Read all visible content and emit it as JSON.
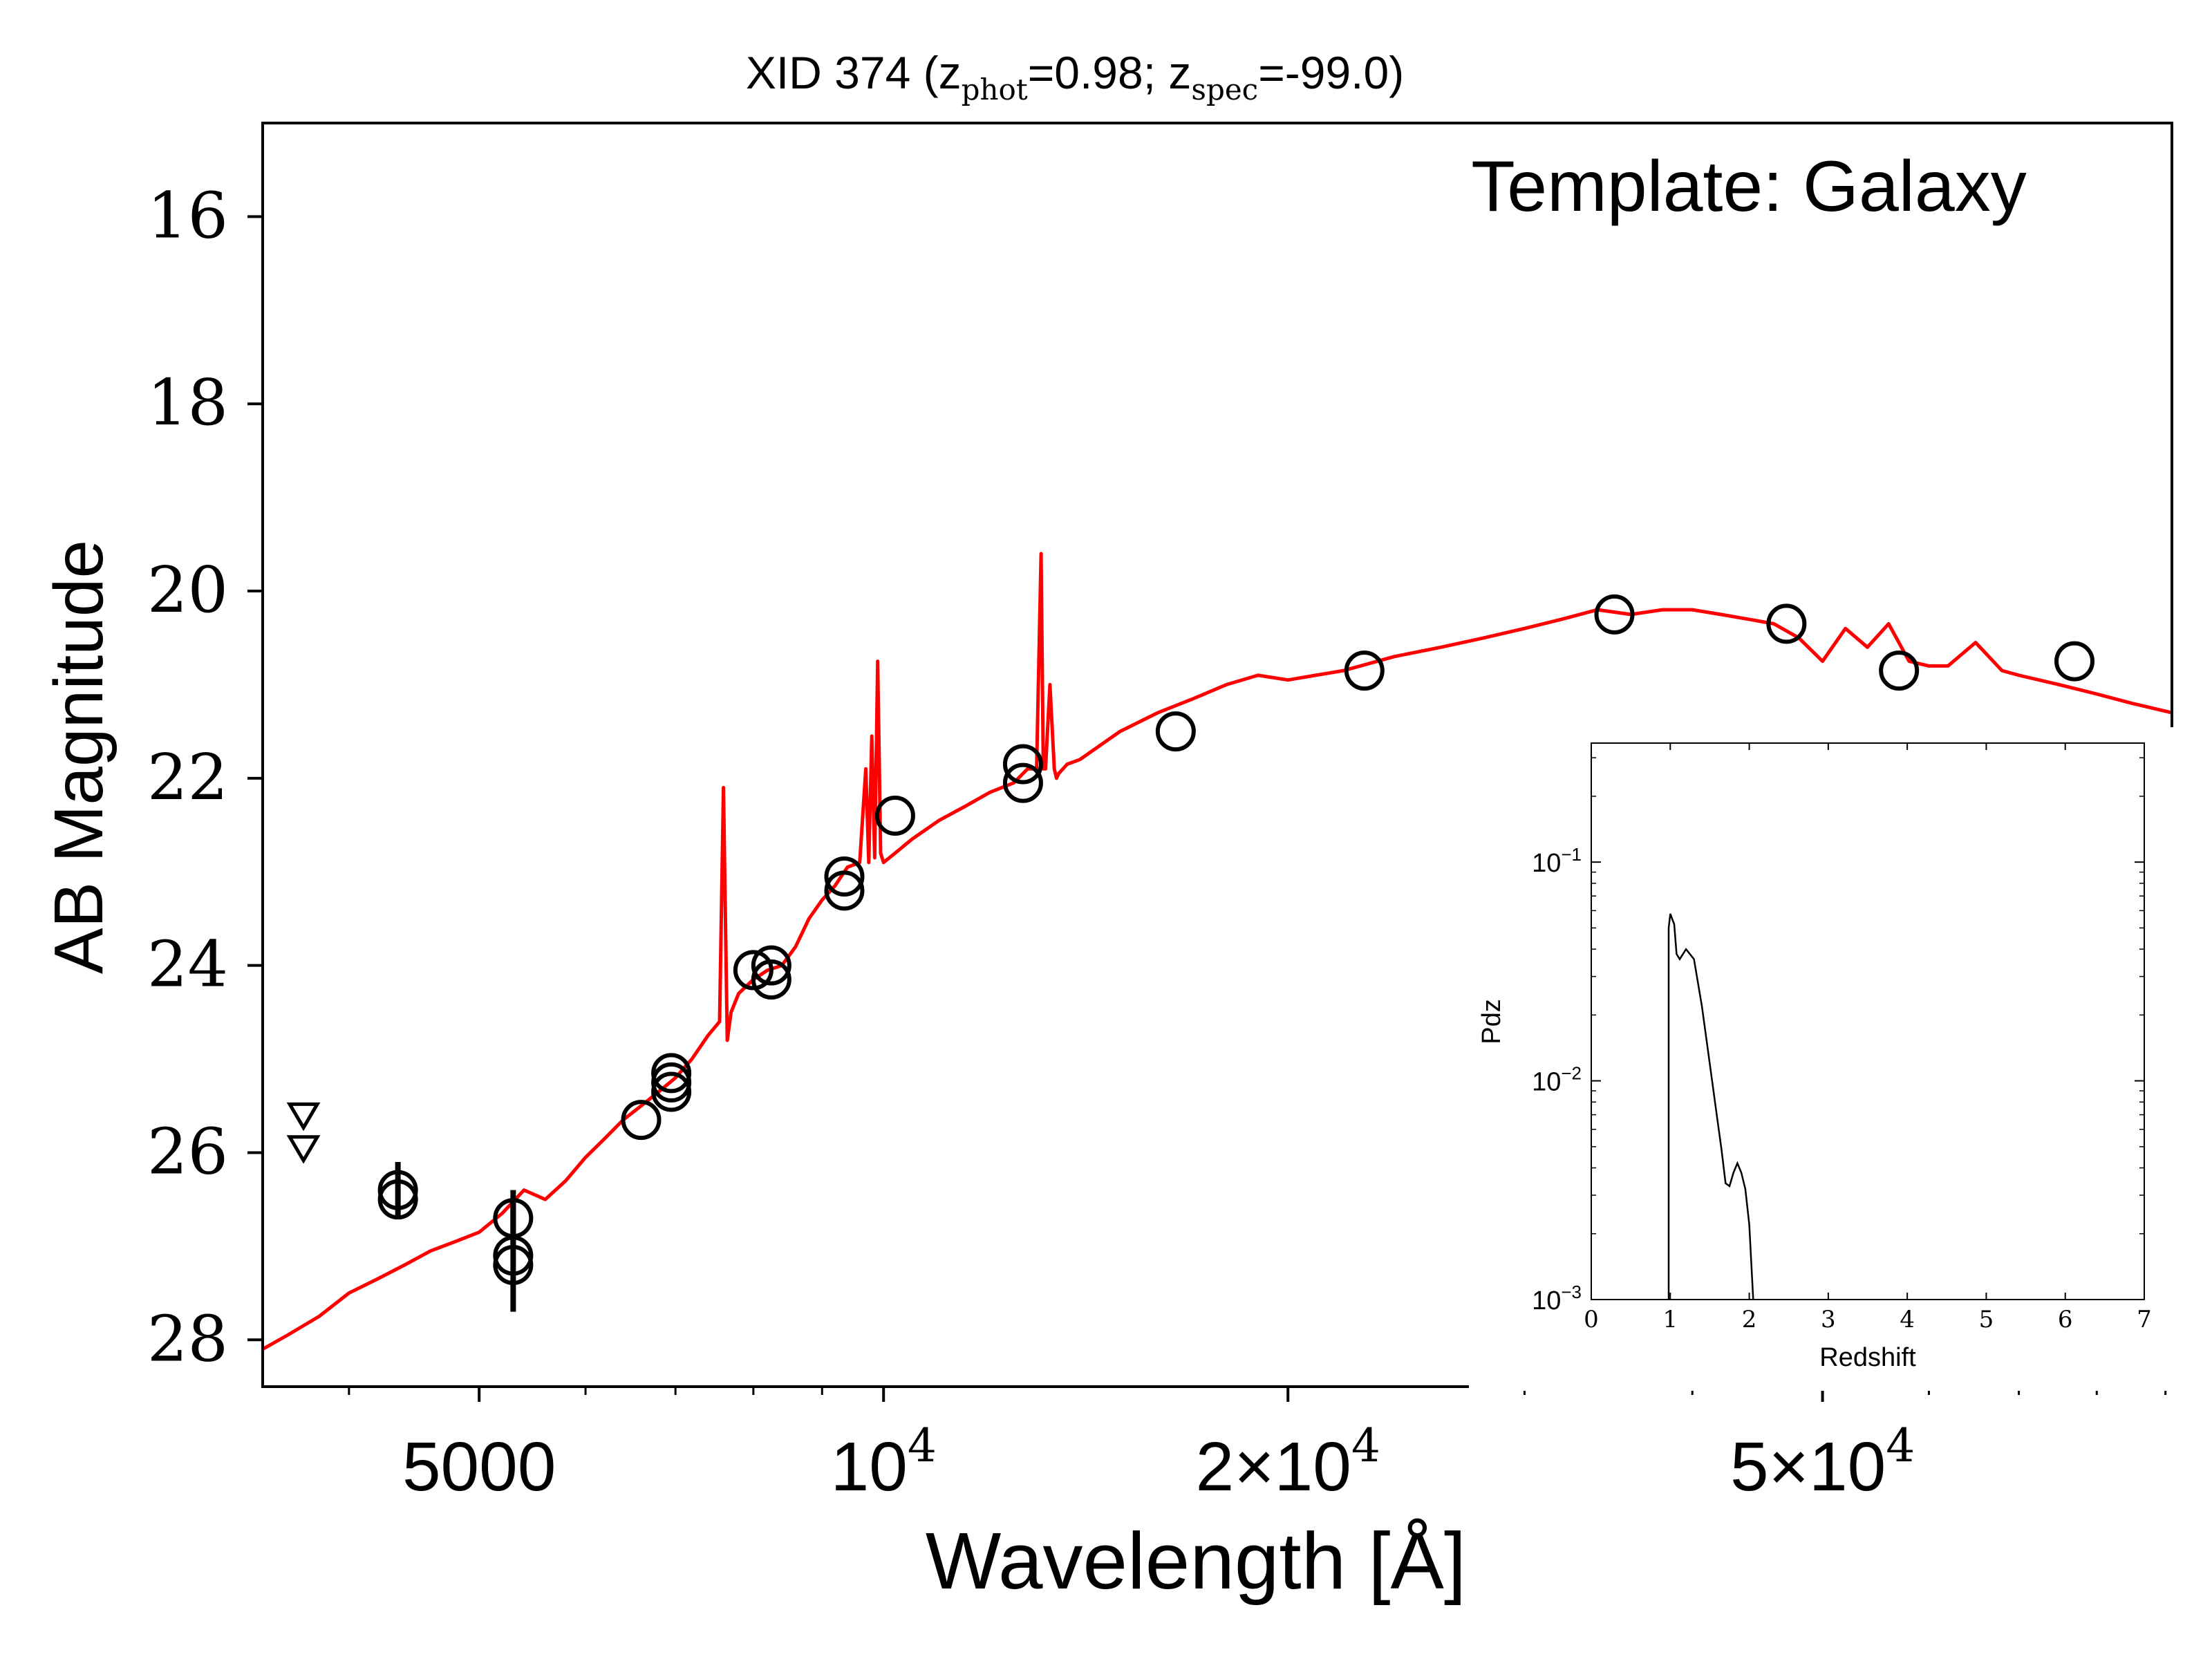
{
  "chart_data": [
    {
      "type": "scatter",
      "title": {
        "prefix": "XID 374 (z",
        "sub1": "phot",
        "mid": "=0.98; z",
        "sub2": "spec",
        "suffix": "=-99.0)"
      },
      "annotation": "Template: Galaxy",
      "xlabel": "Wavelength [Å]",
      "ylabel": "AB Magnitude",
      "x_scale": "log",
      "xlim": [
        3450,
        91000
      ],
      "ylim": [
        28.5,
        15.0
      ],
      "y_inverted": true,
      "x_ticks": [
        {
          "value": 5000,
          "label": "5000"
        },
        {
          "value": 10000,
          "label": "10",
          "sup": "4"
        },
        {
          "value": 20000,
          "label": "2×10",
          "sup": "4"
        },
        {
          "value": 50000,
          "label": "5×10",
          "sup": "4"
        }
      ],
      "y_ticks": [
        16,
        18,
        20,
        22,
        24,
        26,
        28
      ],
      "grid": false,
      "colors": {
        "model": "#ff0000",
        "points": "#000000"
      },
      "series": [
        {
          "kind": "line",
          "color": "#ff0000",
          "x": [
            3450,
            3600,
            3800,
            4000,
            4200,
            4400,
            4600,
            4800,
            5000,
            5200,
            5400,
            5600,
            5800,
            6000,
            6200,
            6400,
            6600,
            6800,
            7000,
            7200,
            7400,
            7550,
            7600,
            7650,
            7700,
            7800,
            8000,
            8200,
            8400,
            8600,
            8800,
            9000,
            9200,
            9400,
            9600,
            9700,
            9750,
            9800,
            9850,
            9900,
            9950,
            10000,
            10100,
            10200,
            10500,
            11000,
            11500,
            12000,
            12500,
            12800,
            13000,
            13100,
            13150,
            13200,
            13300,
            13400,
            13450,
            13500,
            13700,
            14000,
            15000,
            16000,
            17000,
            18000,
            19000,
            20000,
            22000,
            24000,
            26000,
            28000,
            30000,
            32000,
            34000,
            36000,
            38000,
            40000,
            42000,
            44000,
            46000,
            48000,
            50000,
            52000,
            54000,
            56000,
            58000,
            60000,
            62000,
            65000,
            68000,
            70000,
            75000,
            80000,
            85000,
            91000
          ],
          "y": [
            28.1,
            27.95,
            27.75,
            27.5,
            27.35,
            27.2,
            27.05,
            26.95,
            26.85,
            26.65,
            26.4,
            26.5,
            26.3,
            26.05,
            25.85,
            25.65,
            25.5,
            25.35,
            25.2,
            25.0,
            24.75,
            24.6,
            22.1,
            24.8,
            24.5,
            24.3,
            24.15,
            24.05,
            24.0,
            23.8,
            23.5,
            23.3,
            23.15,
            22.95,
            22.9,
            21.9,
            22.9,
            21.55,
            22.85,
            20.75,
            22.8,
            22.9,
            22.85,
            22.8,
            22.65,
            22.45,
            22.3,
            22.15,
            22.05,
            21.9,
            21.9,
            19.6,
            21.9,
            21.9,
            21.0,
            21.9,
            22.0,
            21.95,
            21.85,
            21.8,
            21.5,
            21.3,
            21.15,
            21.0,
            20.9,
            20.95,
            20.85,
            20.7,
            20.6,
            20.5,
            20.4,
            20.3,
            20.2,
            20.25,
            20.2,
            20.2,
            20.25,
            20.3,
            20.35,
            20.5,
            20.75,
            20.4,
            20.6,
            20.35,
            20.75,
            20.8,
            20.8,
            20.55,
            20.85,
            20.9,
            21.0,
            21.1,
            21.2,
            21.3
          ]
        },
        {
          "kind": "points",
          "x": [
            4350,
            4350,
            5300,
            5300,
            5300,
            6600,
            6950,
            6950,
            6950,
            8000,
            8250,
            8250,
            9350,
            9350,
            10200,
            12700,
            12700,
            16500,
            22800,
            35000,
            47000,
            57000,
            77000
          ],
          "y": [
            26.4,
            26.5,
            26.7,
            27.1,
            27.2,
            25.65,
            25.15,
            25.25,
            25.35,
            24.05,
            24.0,
            24.15,
            23.05,
            23.2,
            22.4,
            21.85,
            22.05,
            21.5,
            20.85,
            20.25,
            20.35,
            20.85,
            20.75
          ],
          "yerr": [
            0.3,
            0,
            0.3,
            0.6,
            0,
            0,
            0,
            0,
            0,
            0,
            0,
            0,
            0,
            0,
            0,
            0,
            0,
            0,
            0,
            0,
            0,
            0,
            0
          ]
        },
        {
          "kind": "upper_limits",
          "x": [
            3700,
            3700
          ],
          "y": [
            25.6,
            25.95
          ]
        }
      ]
    },
    {
      "type": "line",
      "xlabel": "Redshift",
      "ylabel": "Pdz",
      "y_scale": "log",
      "xlim": [
        0,
        7
      ],
      "ylim": [
        0.001,
        0.35
      ],
      "x_ticks": [
        "0",
        "1",
        "2",
        "3",
        "4",
        "5",
        "6",
        "7"
      ],
      "y_ticks": [
        {
          "value": 0.1,
          "base": "10",
          "sup": "−1"
        },
        {
          "value": 0.01,
          "base": "10",
          "sup": "−2"
        },
        {
          "value": 0.001,
          "base": "10",
          "sup": "−3"
        }
      ],
      "series": [
        {
          "x": [
            0.98,
            0.98,
            1.0,
            1.05,
            1.08,
            1.12,
            1.2,
            1.3,
            1.4,
            1.5,
            1.6,
            1.65,
            1.7,
            1.75,
            1.8,
            1.85,
            1.9,
            1.95,
            2.0,
            2.05
          ],
          "y": [
            0.001,
            0.05,
            0.058,
            0.052,
            0.038,
            0.036,
            0.04,
            0.036,
            0.022,
            0.012,
            0.0065,
            0.0048,
            0.0034,
            0.0033,
            0.0038,
            0.0042,
            0.0038,
            0.0032,
            0.0022,
            0.001
          ]
        }
      ]
    }
  ]
}
